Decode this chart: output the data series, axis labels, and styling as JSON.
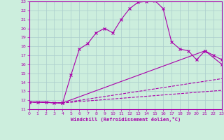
{
  "xlabel": "Windchill (Refroidissement éolien,°C)",
  "bg_color": "#cceedd",
  "line_color": "#aa00aa",
  "grid_color": "#aacccc",
  "xmin": 0,
  "xmax": 23,
  "ymin": 11,
  "ymax": 23,
  "line1_x": [
    0,
    1,
    2,
    3,
    4,
    5,
    6,
    7,
    8,
    9,
    10,
    11,
    12,
    13,
    14,
    15,
    16,
    17,
    18,
    19,
    20,
    21,
    22,
    23
  ],
  "line1_y": [
    11.8,
    11.8,
    11.8,
    11.7,
    11.7,
    14.8,
    17.7,
    18.3,
    19.5,
    20.0,
    19.5,
    21.0,
    22.2,
    22.9,
    23.0,
    23.1,
    22.2,
    18.5,
    17.7,
    17.5,
    16.5,
    17.5,
    17.0,
    16.5
  ],
  "line2_x": [
    0,
    4,
    21,
    23
  ],
  "line2_y": [
    11.8,
    11.7,
    17.5,
    16.0
  ],
  "line3_x": [
    0,
    4,
    23
  ],
  "line3_y": [
    11.8,
    11.7,
    14.4
  ],
  "line4_x": [
    0,
    4,
    23
  ],
  "line4_y": [
    11.8,
    11.7,
    13.1
  ],
  "markersize": 3
}
